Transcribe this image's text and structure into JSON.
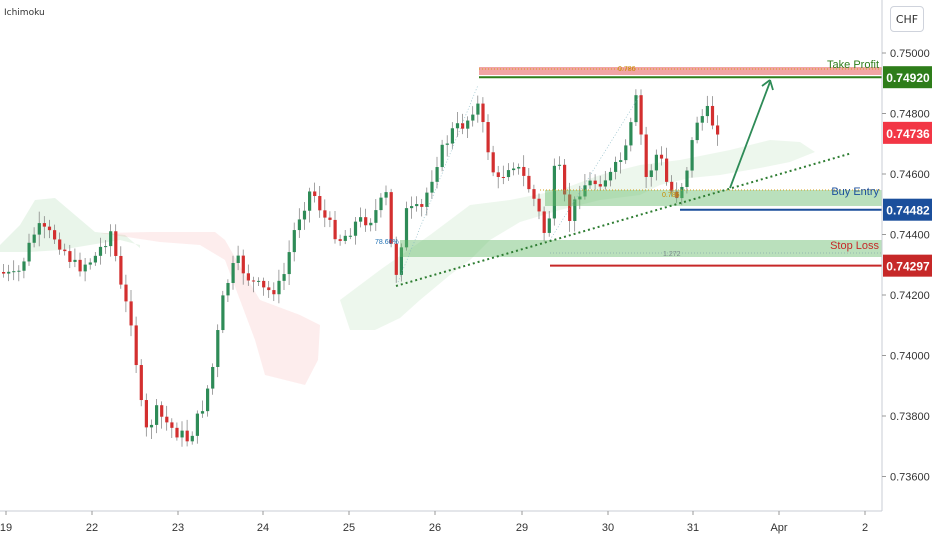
{
  "indicator_label": "Ichimoku",
  "currency_button": "CHF",
  "chart_data": {
    "type": "candlestick",
    "instrument_currency": "CHF",
    "indicator": "Ichimoku",
    "ylim": [
      0.7351,
      0.7513
    ],
    "y_ticks": [
      "0.75000",
      "0.74800",
      "0.74600",
      "0.74400",
      "0.74200",
      "0.74000",
      "0.73800",
      "0.73600"
    ],
    "x_ticks": [
      "19",
      "22",
      "23",
      "24",
      "25",
      "26",
      "29",
      "30",
      "31",
      "Apr",
      "2"
    ],
    "levels": [
      {
        "label": "Take Profit",
        "price_label": "0.74920",
        "value": 0.7492,
        "color": "#2e7d1a"
      },
      {
        "label": "Buy Entry",
        "price_label": "0.74482",
        "value": 0.74482,
        "color": "#1b4f9c"
      },
      {
        "label": "Stop Loss",
        "price_label": "0.74297",
        "value": 0.74297,
        "color": "#c62828"
      }
    ],
    "current_price_label": "0.74736",
    "current_price": 0.74736,
    "current_color": "#f23645",
    "fib_labels": [
      "0.786",
      "78.60%",
      "0.786",
      "1.272"
    ],
    "up_color": "#2e8b57",
    "down_color": "#d32f2f"
  }
}
